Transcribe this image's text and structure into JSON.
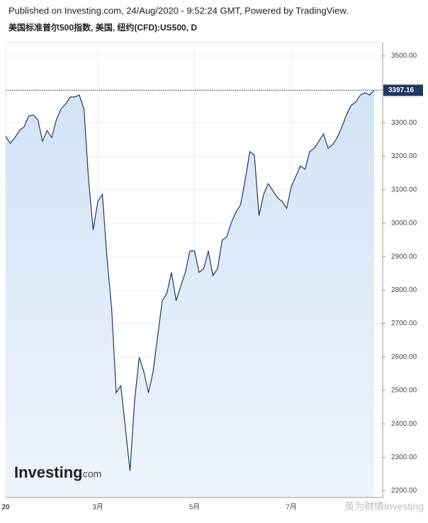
{
  "header": {
    "published": "Published on Investing.com, 24/Aug/2020 - 9:52:24 GMT, Powered by TradingView."
  },
  "watermark": "英为财情Investing",
  "logo": {
    "brand": "Investing",
    "suffix": ".com"
  },
  "chart_data": {
    "type": "area",
    "title": "美国标准普尔500指数, 美国, 纽约(CFD):US500, D",
    "categories": [
      "20",
      null,
      null,
      null,
      null,
      null,
      null,
      null,
      null,
      null,
      null,
      null,
      null,
      null,
      null,
      null,
      null,
      null,
      null,
      null,
      "3月",
      null,
      null,
      null,
      null,
      null,
      null,
      null,
      null,
      null,
      null,
      null,
      null,
      null,
      null,
      null,
      null,
      null,
      null,
      null,
      null,
      "5月",
      null,
      null,
      null,
      null,
      null,
      null,
      null,
      null,
      null,
      null,
      null,
      null,
      null,
      null,
      null,
      null,
      null,
      null,
      null,
      null,
      "7月",
      null,
      null,
      null,
      null,
      null,
      null,
      null,
      null,
      null,
      null,
      null,
      null,
      null,
      null,
      null,
      null,
      null,
      null
    ],
    "values": [
      3260,
      3239,
      3256,
      3277,
      3288,
      3320,
      3324,
      3309,
      3245,
      3277,
      3256,
      3309,
      3341,
      3356,
      3377,
      3377,
      3383,
      3341,
      3129,
      2980,
      3065,
      3086,
      2896,
      2747,
      2493,
      2514,
      2387,
      2259,
      2471,
      2599,
      2556,
      2493,
      2556,
      2662,
      2768,
      2790,
      2853,
      2768,
      2811,
      2853,
      2917,
      2917,
      2853,
      2864,
      2917,
      2843,
      2864,
      2949,
      2959,
      3002,
      3033,
      3055,
      3129,
      3214,
      3203,
      3023,
      3086,
      3118,
      3097,
      3076,
      3065,
      3044,
      3108,
      3140,
      3171,
      3161,
      3214,
      3224,
      3245,
      3267,
      3224,
      3235,
      3256,
      3288,
      3324,
      3352,
      3362,
      3383,
      3390,
      3383,
      3397.16
    ],
    "last_value_label": "3397.16",
    "color": "#1f3864",
    "fill": "#dbe8f6",
    "ylim": [
      2180,
      3540
    ],
    "yticks": [
      {
        "value": 2200,
        "label": "2200.00"
      },
      {
        "value": 2300,
        "label": "2300.00"
      },
      {
        "value": 2400,
        "label": "2400.00"
      },
      {
        "value": 2500,
        "label": "2500.00"
      },
      {
        "value": 2600,
        "label": "2600.00"
      },
      {
        "value": 2700,
        "label": "2700.00"
      },
      {
        "value": 2800,
        "label": "2800.00"
      },
      {
        "value": 2900,
        "label": "2900.00"
      },
      {
        "value": 3000,
        "label": "3000.00"
      },
      {
        "value": 3100,
        "label": "3100.00"
      },
      {
        "value": 3200,
        "label": "3200.00"
      },
      {
        "value": 3300,
        "label": "3300.00"
      },
      {
        "value": 3400,
        "label": "3400.00"
      },
      {
        "value": 3500,
        "label": "3500.00"
      }
    ],
    "grid": true
  }
}
